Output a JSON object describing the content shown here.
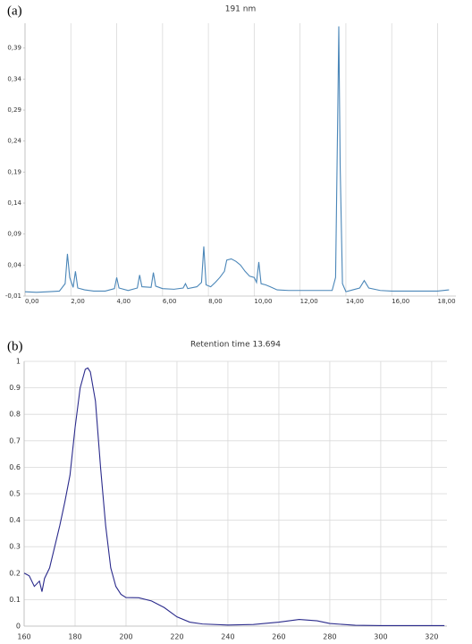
{
  "chart_data": [
    {
      "type": "line",
      "panel_label": "(a)",
      "title": "191 nm",
      "x": [
        0,
        0.5,
        1,
        1.5,
        1.75,
        1.85,
        1.95,
        2.1,
        2.2,
        2.3,
        2.6,
        3,
        3.5,
        3.9,
        4.0,
        4.1,
        4.5,
        4.9,
        5.0,
        5.1,
        5.5,
        5.6,
        5.7,
        6,
        6.5,
        6.9,
        7.0,
        7.1,
        7.5,
        7.7,
        7.8,
        7.9,
        8.1,
        8.3,
        8.5,
        8.7,
        8.8,
        9.0,
        9.2,
        9.4,
        9.6,
        9.8,
        10.0,
        10.1,
        10.2,
        10.3,
        10.5,
        10.7,
        11,
        11.5,
        12,
        12.5,
        13,
        13.4,
        13.55,
        13.65,
        13.69,
        13.75,
        13.85,
        14.0,
        14.3,
        14.6,
        14.8,
        15.0,
        15.5,
        16,
        16.5,
        17,
        17.5,
        18,
        18.5
      ],
      "series": [
        {
          "color": "#4a86b8",
          "values": [
            -0.003,
            -0.004,
            -0.003,
            -0.002,
            0.01,
            0.058,
            0.02,
            0.004,
            0.03,
            0.003,
            0,
            -0.002,
            -0.002,
            0.002,
            0.02,
            0.003,
            -0.001,
            0.003,
            0.024,
            0.005,
            0.004,
            0.028,
            0.006,
            0.002,
            0.001,
            0.003,
            0.01,
            0.002,
            0.005,
            0.012,
            0.07,
            0.008,
            0.005,
            0.012,
            0.02,
            0.03,
            0.048,
            0.05,
            0.046,
            0.04,
            0.03,
            0.022,
            0.02,
            0.012,
            0.045,
            0.01,
            0.008,
            0.005,
            0.0,
            -0.001,
            -0.001,
            -0.001,
            -0.001,
            -0.001,
            0.02,
            0.3,
            0.425,
            0.2,
            0.01,
            -0.003,
            0.0,
            0.003,
            0.015,
            0.003,
            -0.001,
            -0.002,
            -0.002,
            -0.002,
            -0.002,
            -0.002,
            0.0
          ]
        }
      ],
      "xlim": [
        0,
        18.8
      ],
      "ylim": [
        -0.01,
        0.43
      ],
      "xticks": [
        {
          "value": 0,
          "label": "0,00"
        },
        {
          "value": 2,
          "label": "2,00"
        },
        {
          "value": 4,
          "label": "4,00"
        },
        {
          "value": 6,
          "label": "6,00"
        },
        {
          "value": 8,
          "label": "8,00"
        },
        {
          "value": 10,
          "label": "10,00"
        },
        {
          "value": 12,
          "label": "12,00"
        },
        {
          "value": 14,
          "label": "14,00"
        },
        {
          "value": 16,
          "label": "16,00"
        },
        {
          "value": 18,
          "label": "18,00"
        }
      ],
      "yticks": [
        {
          "value": -0.01,
          "label": "-0,01"
        },
        {
          "value": 0.04,
          "label": "0,04"
        },
        {
          "value": 0.09,
          "label": "0,09"
        },
        {
          "value": 0.14,
          "label": "0,14"
        },
        {
          "value": 0.19,
          "label": "0,19"
        },
        {
          "value": 0.24,
          "label": "0,24"
        },
        {
          "value": 0.29,
          "label": "0,29"
        },
        {
          "value": 0.34,
          "label": "0,34"
        },
        {
          "value": 0.39,
          "label": "0,39"
        }
      ],
      "grid": "x"
    },
    {
      "type": "line",
      "panel_label": "(b)",
      "title": "Retention time 13.694",
      "x": [
        160,
        162,
        164,
        166,
        167,
        168,
        170,
        172,
        174,
        176,
        178,
        180,
        182,
        184,
        185,
        186,
        188,
        190,
        192,
        194,
        196,
        198,
        200,
        205,
        210,
        215,
        220,
        225,
        230,
        240,
        250,
        260,
        268,
        275,
        280,
        290,
        300,
        310,
        320,
        325
      ],
      "series": [
        {
          "color": "#2b2b8c",
          "values": [
            0.2,
            0.19,
            0.15,
            0.17,
            0.13,
            0.18,
            0.22,
            0.3,
            0.38,
            0.47,
            0.57,
            0.75,
            0.9,
            0.97,
            0.975,
            0.96,
            0.85,
            0.6,
            0.38,
            0.22,
            0.15,
            0.12,
            0.108,
            0.107,
            0.095,
            0.07,
            0.035,
            0.015,
            0.008,
            0.004,
            0.006,
            0.015,
            0.025,
            0.02,
            0.01,
            0.003,
            0.002,
            0.002,
            0.002,
            0.002
          ]
        }
      ],
      "xlim": [
        160,
        326
      ],
      "ylim": [
        0,
        1
      ],
      "xticks": [
        160,
        180,
        200,
        220,
        240,
        260,
        280,
        300,
        320
      ],
      "yticks": [
        0,
        0.1,
        0.2,
        0.3,
        0.4,
        0.5,
        0.6,
        0.7,
        0.8,
        0.9,
        1
      ],
      "grid": "both"
    }
  ]
}
